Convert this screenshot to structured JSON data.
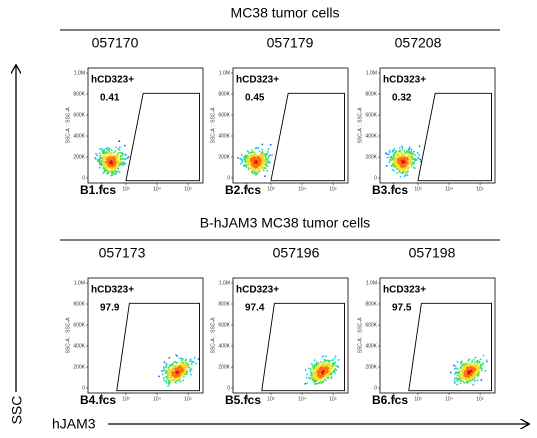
{
  "groups": [
    {
      "title": "MC38 tumor cells",
      "panels": [
        {
          "sample": "057170",
          "gate": "hCD323+",
          "percent": 0.41,
          "file": "B1.fcs"
        },
        {
          "sample": "057179",
          "gate": "hCD323+",
          "percent": 0.45,
          "file": "B2.fcs"
        },
        {
          "sample": "057208",
          "gate": "hCD323+",
          "percent": 0.32,
          "file": "B3.fcs"
        }
      ]
    },
    {
      "title": "B-hJAM3 MC38 tumor cells",
      "panels": [
        {
          "sample": "057173",
          "gate": "hCD323+",
          "percent": 97.9,
          "file": "B4.fcs"
        },
        {
          "sample": "057196",
          "gate": "hCD323+",
          "percent": 97.4,
          "file": "B5.fcs"
        },
        {
          "sample": "057198",
          "gate": "hCD323+",
          "percent": 97.5,
          "file": "B6.fcs"
        }
      ]
    }
  ],
  "axes": {
    "y_label": "SSC",
    "x_label": "hJAM3",
    "panel_y_title": "SSC-A :: SSC-A",
    "yticks": [
      "1.0M",
      "800K",
      "600K",
      "400K",
      "200K",
      "0"
    ],
    "xticks": [
      "0",
      "10³",
      "10⁴",
      "10⁵"
    ]
  }
}
